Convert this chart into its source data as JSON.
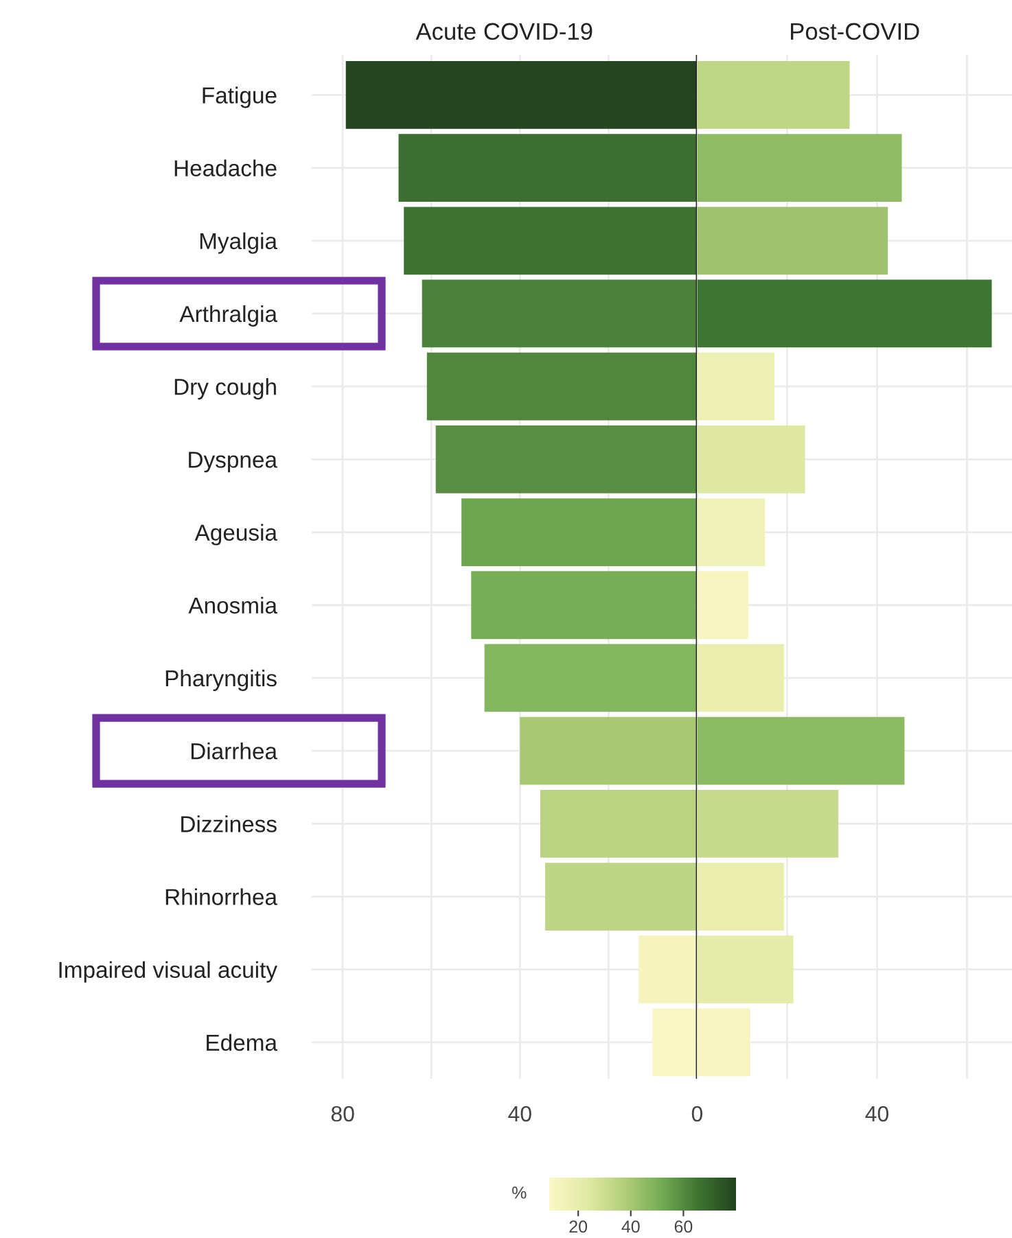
{
  "chart_data": [
    {
      "type": "bar",
      "orientation": "horizontal",
      "title": "Acute COVID-19",
      "categories": [
        "Fatigue",
        "Headache",
        "Myalgia",
        "Arthralgia",
        "Dry cough",
        "Dyspnea",
        "Ageusia",
        "Anosmia",
        "Pharyngitis",
        "Diarrhea",
        "Dizziness",
        "Rhinorrhea",
        "Impaired visual acuity",
        "Edema"
      ],
      "values": [
        79.3,
        67.4,
        66.2,
        62.1,
        61.0,
        59.0,
        53.2,
        51.0,
        48.0,
        40.0,
        35.4,
        34.3,
        13.2,
        10.1
      ],
      "xlim": [
        87,
        0
      ],
      "xticks": [
        80,
        {
          "value": 60,
          "label": null
        },
        40,
        {
          "value": 20,
          "label": null
        },
        0
      ],
      "grid": true,
      "ref_lines": [
        {
          "axis": "x",
          "value": 0
        }
      ],
      "clabel": "%",
      "clim": [
        9,
        80
      ],
      "cticks": [
        20,
        40,
        60
      ]
    },
    {
      "type": "bar",
      "orientation": "horizontal",
      "title": "Post-COVID",
      "categories": [
        null,
        null,
        null,
        null,
        null,
        null,
        null,
        null,
        null,
        null,
        null,
        null,
        null,
        null
      ],
      "values": [
        33.9,
        45.5,
        42.4,
        65.5,
        17.2,
        24.0,
        15.1,
        11.4,
        19.3,
        46.1,
        31.4,
        19.3,
        21.4,
        11.8
      ],
      "xlim": [
        0,
        70
      ],
      "xticks": [
        {
          "value": 0,
          "label": null
        },
        {
          "value": 20,
          "label": null
        },
        40,
        {
          "value": 60,
          "label": null
        }
      ],
      "grid": true
    }
  ]
}
